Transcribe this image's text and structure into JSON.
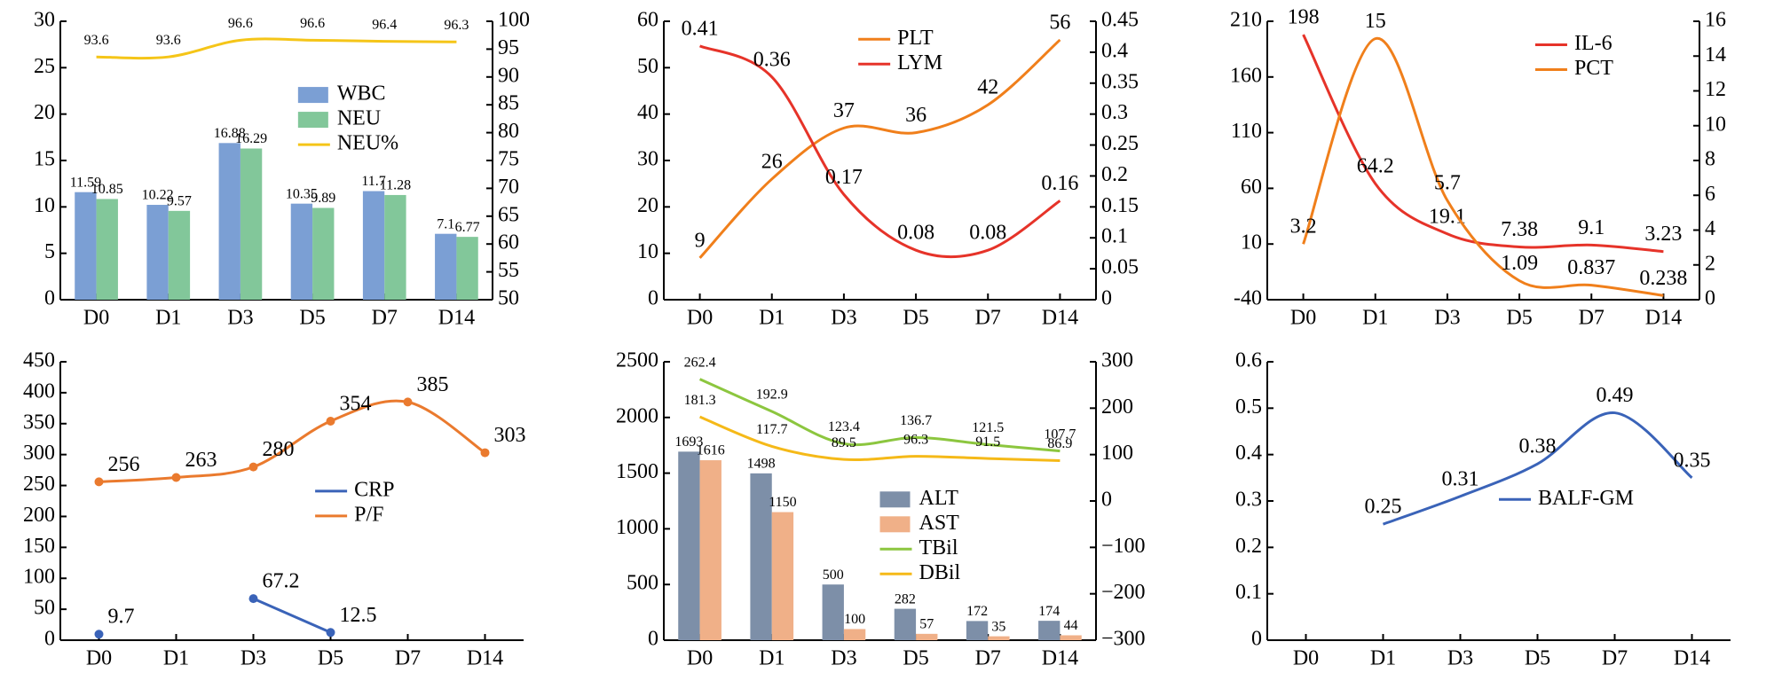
{
  "chart_data": [
    {
      "type": "bar",
      "categories": [
        "D0",
        "D1",
        "D3",
        "D5",
        "D7",
        "D14"
      ],
      "ylim": [
        0,
        30
      ],
      "yticks": [
        0,
        5,
        10,
        15,
        20,
        25,
        30
      ],
      "y2lim": [
        50,
        100
      ],
      "y2ticks": [
        50,
        55,
        60,
        65,
        70,
        75,
        80,
        85,
        90,
        95,
        100
      ],
      "legend": "center right",
      "series": [
        {
          "name": "WBC",
          "type": "bar",
          "color": "#7b9fd4",
          "values": [
            11.59,
            10.22,
            16.88,
            10.35,
            11.7,
            7.1
          ]
        },
        {
          "name": "NEU",
          "type": "bar",
          "color": "#82c79a",
          "values": [
            10.85,
            9.57,
            16.29,
            9.89,
            11.28,
            6.77
          ]
        },
        {
          "name": "NEU%",
          "type": "line",
          "axis": "y2",
          "color": "#f5c518",
          "smooth": true,
          "values": [
            93.6,
            93.6,
            96.6,
            96.6,
            96.4,
            96.3
          ]
        }
      ]
    },
    {
      "type": "line",
      "categories": [
        "D0",
        "D1",
        "D3",
        "D5",
        "D7",
        "D14"
      ],
      "ylim": [
        0,
        60
      ],
      "yticks": [
        0,
        10,
        20,
        30,
        40,
        50,
        60
      ],
      "y2lim": [
        0,
        0.45
      ],
      "y2ticks": [
        0,
        0.05,
        0.1,
        0.15,
        0.2,
        0.25,
        0.3,
        0.35,
        0.4,
        0.45
      ],
      "legend": "upper center",
      "series": [
        {
          "name": "PLT",
          "type": "line",
          "color": "#f07f1b",
          "smooth": true,
          "values": [
            9,
            26,
            37,
            36,
            42,
            56
          ]
        },
        {
          "name": "LYM",
          "type": "line",
          "axis": "y2",
          "color": "#e63329",
          "smooth": true,
          "values": [
            0.41,
            0.36,
            0.17,
            0.08,
            0.08,
            0.16
          ]
        }
      ]
    },
    {
      "type": "line",
      "categories": [
        "D0",
        "D1",
        "D3",
        "D5",
        "D7",
        "D14"
      ],
      "ylim": [
        -40,
        210
      ],
      "yticks": [
        -40,
        10,
        60,
        110,
        160,
        210
      ],
      "y2lim": [
        0,
        16
      ],
      "y2ticks": [
        0,
        2,
        4,
        6,
        8,
        10,
        12,
        14,
        16
      ],
      "legend": "upper right",
      "series": [
        {
          "name": "IL-6",
          "type": "line",
          "color": "#e63329",
          "smooth": true,
          "values": [
            198,
            64.2,
            19.1,
            7.38,
            9.1,
            3.23
          ]
        },
        {
          "name": "PCT",
          "type": "line",
          "axis": "y2",
          "color": "#f07f1b",
          "smooth": true,
          "values": [
            3.2,
            15,
            5.7,
            1.09,
            0.837,
            0.238
          ]
        }
      ]
    },
    {
      "type": "line",
      "categories": [
        "D0",
        "D1",
        "D3",
        "D5",
        "D7",
        "D14"
      ],
      "ylim": [
        0,
        450
      ],
      "yticks": [
        0,
        50,
        100,
        150,
        200,
        250,
        300,
        350,
        400,
        450
      ],
      "legend": "center",
      "series": [
        {
          "name": "CRP",
          "type": "line",
          "color": "#3a63b8",
          "marker": true,
          "values": [
            9.7,
            null,
            67.2,
            12.5,
            null,
            null
          ]
        },
        {
          "name": "P/F",
          "type": "line",
          "color": "#ea7a2e",
          "marker": true,
          "smooth": true,
          "values": [
            256,
            263,
            280,
            354,
            385,
            303
          ]
        }
      ]
    },
    {
      "type": "bar",
      "categories": [
        "D0",
        "D1",
        "D3",
        "D5",
        "D7",
        "D14"
      ],
      "ylim": [
        0,
        2500
      ],
      "yticks": [
        0,
        500,
        1000,
        1500,
        2000,
        2500
      ],
      "y2lim": [
        -300,
        300
      ],
      "y2ticks": [
        {
          "value": -300,
          "label": "−300"
        },
        {
          "value": -200,
          "label": "−200"
        },
        {
          "value": -100,
          "label": "−100"
        },
        0,
        100,
        200,
        300
      ],
      "legend": "lower right",
      "series": [
        {
          "name": "ALT",
          "type": "bar",
          "color": "#7d8fa8",
          "values": [
            1693,
            1498,
            500,
            282,
            172,
            174
          ]
        },
        {
          "name": "AST",
          "type": "bar",
          "color": "#f0b088",
          "values": [
            1616,
            1150,
            100,
            57,
            35,
            44
          ]
        },
        {
          "name": "TBil",
          "type": "line",
          "axis": "y2",
          "color": "#8cc63f",
          "smooth": true,
          "values": [
            262.4,
            192.9,
            123.4,
            136.7,
            121.5,
            107.7
          ]
        },
        {
          "name": "DBil",
          "type": "line",
          "axis": "y2",
          "color": "#f5b918",
          "smooth": true,
          "values": [
            181.3,
            117.7,
            89.5,
            96.3,
            91.5,
            86.9
          ]
        }
      ]
    },
    {
      "type": "line",
      "categories": [
        "D0",
        "D1",
        "D3",
        "D5",
        "D7",
        "D14"
      ],
      "ylim": [
        0,
        0.6
      ],
      "yticks": [
        0,
        0.1,
        0.2,
        0.3,
        0.4,
        0.5,
        0.6
      ],
      "legend": "lower right",
      "series": [
        {
          "name": "BALF-GM",
          "type": "line",
          "color": "#3a63b8",
          "smooth": true,
          "values": [
            null,
            0.25,
            0.31,
            0.38,
            0.49,
            0.35
          ]
        }
      ]
    }
  ]
}
